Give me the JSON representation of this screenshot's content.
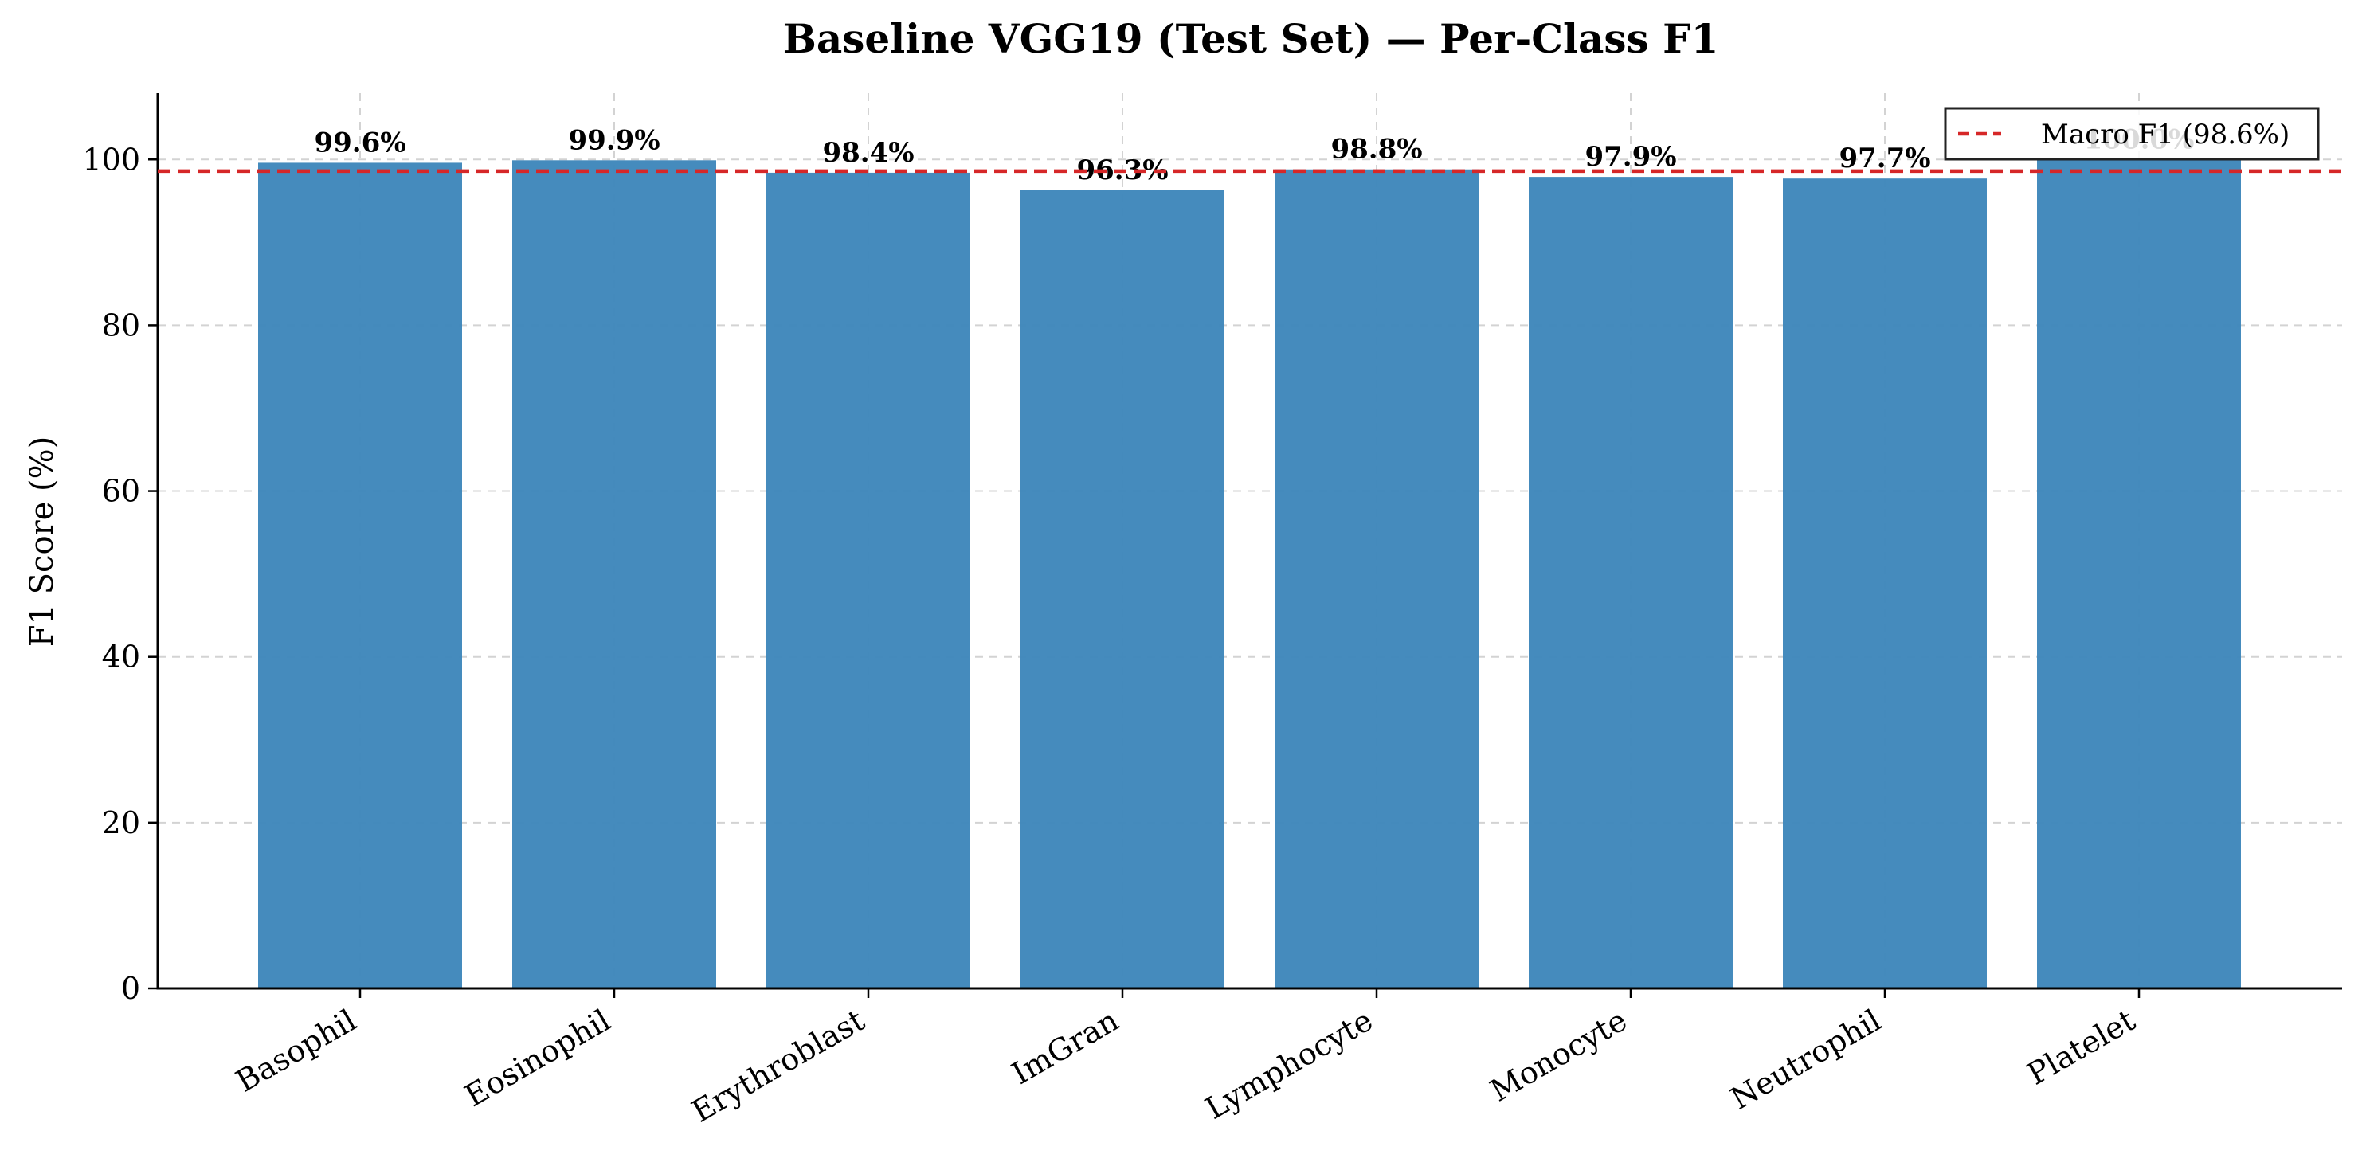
{
  "chart_data": {
    "type": "bar",
    "title": "Baseline VGG19 (Test Set) — Per-Class F1",
    "xlabel": "",
    "ylabel": "F1 Score (%)",
    "ylim": [
      0,
      108
    ],
    "yticks": [
      0,
      20,
      40,
      60,
      80,
      100
    ],
    "categories": [
      "Basophil",
      "Eosinophil",
      "Erythroblast",
      "ImGran",
      "Lymphocyte",
      "Monocyte",
      "Neutrophil",
      "Platelet"
    ],
    "values": [
      99.6,
      99.9,
      98.4,
      96.3,
      98.8,
      97.9,
      97.7,
      100.0
    ],
    "value_labels": [
      "99.6%",
      "99.9%",
      "98.4%",
      "96.3%",
      "98.8%",
      "97.9%",
      "97.7%",
      "100.0%"
    ],
    "reference_line": {
      "label": "Macro F1 (98.6%)",
      "value": 98.6,
      "color": "#d62728",
      "style": "dashed"
    },
    "bar_color": "#3f87bb",
    "grid": true,
    "legend_position": "top-right"
  }
}
